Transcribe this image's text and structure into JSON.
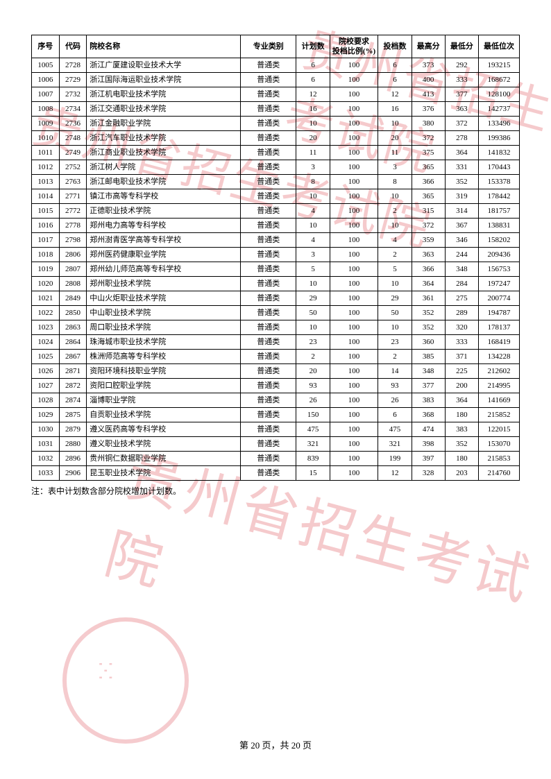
{
  "watermark_text": "贵州省招生考试院",
  "watermark_color": "#d9303a",
  "table": {
    "columns": [
      "序号",
      "代码",
      "院校名称",
      "专业类别",
      "计划数",
      "院校要求投档比例(%)",
      "投档数",
      "最高分",
      "最低分",
      "最低位次"
    ],
    "rows": [
      [
        "1005",
        "2728",
        "浙江广厦建设职业技术大学",
        "普通类",
        "6",
        "100",
        "6",
        "373",
        "292",
        "193215"
      ],
      [
        "1006",
        "2729",
        "浙江国际海运职业技术学院",
        "普通类",
        "6",
        "100",
        "6",
        "400",
        "333",
        "168672"
      ],
      [
        "1007",
        "2732",
        "浙江机电职业技术学院",
        "普通类",
        "12",
        "100",
        "12",
        "413",
        "377",
        "128100"
      ],
      [
        "1008",
        "2734",
        "浙江交通职业技术学院",
        "普通类",
        "16",
        "100",
        "16",
        "376",
        "363",
        "142737"
      ],
      [
        "1009",
        "2736",
        "浙江金融职业学院",
        "普通类",
        "10",
        "100",
        "10",
        "380",
        "372",
        "133496"
      ],
      [
        "1010",
        "2748",
        "浙江汽车职业技术学院",
        "普通类",
        "20",
        "100",
        "20",
        "372",
        "278",
        "199386"
      ],
      [
        "1011",
        "2749",
        "浙江商业职业技术学院",
        "普通类",
        "11",
        "100",
        "11",
        "375",
        "364",
        "141832"
      ],
      [
        "1012",
        "2752",
        "浙江树人学院",
        "普通类",
        "3",
        "100",
        "3",
        "365",
        "331",
        "170443"
      ],
      [
        "1013",
        "2763",
        "浙江邮电职业技术学院",
        "普通类",
        "8",
        "100",
        "8",
        "366",
        "352",
        "153378"
      ],
      [
        "1014",
        "2771",
        "镇江市高等专科学校",
        "普通类",
        "10",
        "100",
        "10",
        "365",
        "319",
        "178442"
      ],
      [
        "1015",
        "2772",
        "正德职业技术学院",
        "普通类",
        "4",
        "100",
        "2",
        "315",
        "314",
        "181757"
      ],
      [
        "1016",
        "2778",
        "郑州电力高等专科学校",
        "普通类",
        "10",
        "100",
        "10",
        "372",
        "367",
        "138831"
      ],
      [
        "1017",
        "2798",
        "郑州澍青医学高等专科学校",
        "普通类",
        "4",
        "100",
        "4",
        "359",
        "346",
        "158202"
      ],
      [
        "1018",
        "2806",
        "郑州医药健康职业学院",
        "普通类",
        "3",
        "100",
        "2",
        "363",
        "244",
        "209436"
      ],
      [
        "1019",
        "2807",
        "郑州幼儿师范高等专科学校",
        "普通类",
        "5",
        "100",
        "5",
        "366",
        "348",
        "156753"
      ],
      [
        "1020",
        "2808",
        "郑州职业技术学院",
        "普通类",
        "10",
        "100",
        "10",
        "364",
        "284",
        "197247"
      ],
      [
        "1021",
        "2849",
        "中山火炬职业技术学院",
        "普通类",
        "29",
        "100",
        "29",
        "361",
        "275",
        "200774"
      ],
      [
        "1022",
        "2850",
        "中山职业技术学院",
        "普通类",
        "50",
        "100",
        "50",
        "352",
        "289",
        "194787"
      ],
      [
        "1023",
        "2863",
        "周口职业技术学院",
        "普通类",
        "10",
        "100",
        "10",
        "352",
        "320",
        "178137"
      ],
      [
        "1024",
        "2864",
        "珠海城市职业技术学院",
        "普通类",
        "23",
        "100",
        "23",
        "360",
        "333",
        "168419"
      ],
      [
        "1025",
        "2867",
        "株洲师范高等专科学校",
        "普通类",
        "2",
        "100",
        "2",
        "385",
        "371",
        "134228"
      ],
      [
        "1026",
        "2871",
        "资阳环境科技职业学院",
        "普通类",
        "20",
        "100",
        "14",
        "348",
        "225",
        "212602"
      ],
      [
        "1027",
        "2872",
        "资阳口腔职业学院",
        "普通类",
        "93",
        "100",
        "93",
        "377",
        "200",
        "214995"
      ],
      [
        "1028",
        "2874",
        "淄博职业学院",
        "普通类",
        "26",
        "100",
        "26",
        "383",
        "364",
        "141669"
      ],
      [
        "1029",
        "2875",
        "自贡职业技术学院",
        "普通类",
        "150",
        "100",
        "6",
        "368",
        "180",
        "215852"
      ],
      [
        "1030",
        "2879",
        "遵义医药高等专科学校",
        "普通类",
        "475",
        "100",
        "475",
        "474",
        "383",
        "122015"
      ],
      [
        "1031",
        "2880",
        "遵义职业技术学院",
        "普通类",
        "321",
        "100",
        "321",
        "398",
        "352",
        "153070"
      ],
      [
        "1032",
        "2896",
        "贵州铜仁数据职业学院",
        "普通类",
        "839",
        "100",
        "199",
        "397",
        "180",
        "215853"
      ],
      [
        "1033",
        "2906",
        "昆玉职业技术学院",
        "普通类",
        "15",
        "100",
        "12",
        "328",
        "203",
        "214760"
      ]
    ]
  },
  "note": "注：表中计划数含部分院校增加计划数。",
  "footer": "第 20 页，共 20 页"
}
